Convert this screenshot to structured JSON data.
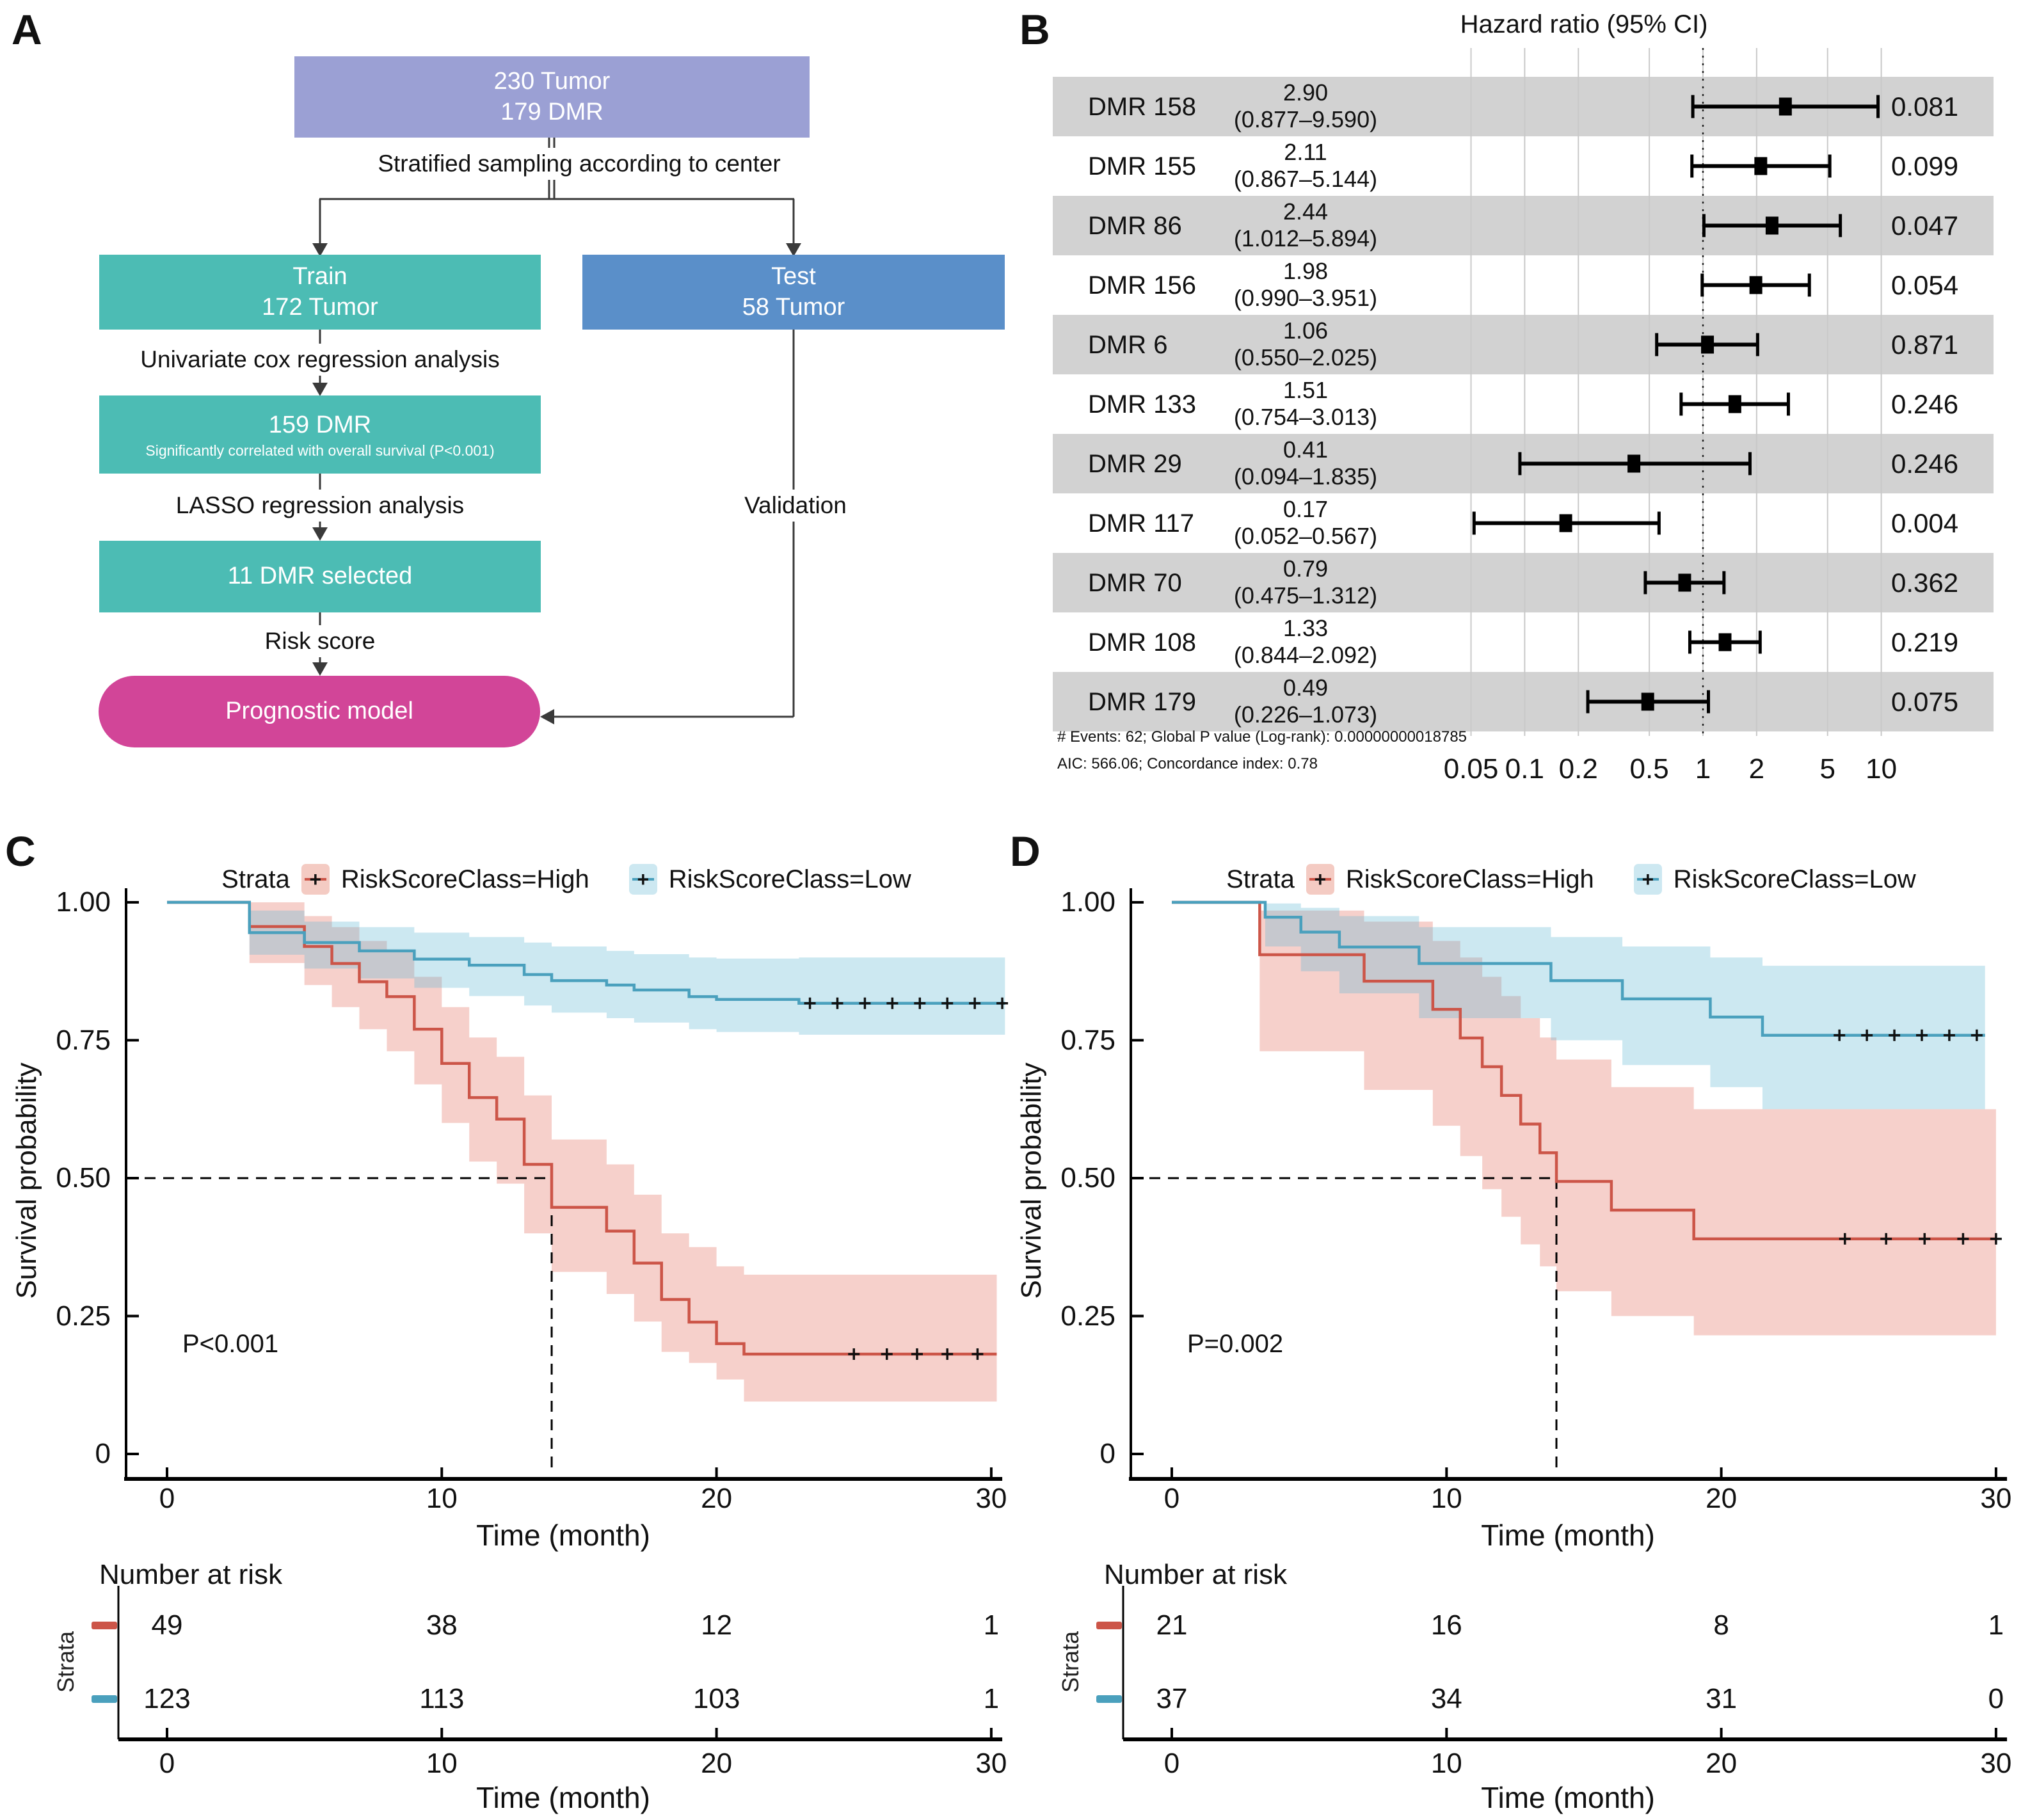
{
  "colors": {
    "flow_root": "#9ba0d4",
    "flow_train": "#4cbcb4",
    "flow_test": "#5a8fc9",
    "flow_model": "#d24598",
    "connector": "#3a3a3a",
    "forest_band": "#d2d2d2",
    "km_high": "#cc5548",
    "km_low": "#4aa0bd",
    "km_high_band": "rgba(228,108,92,0.32)",
    "km_low_band": "rgba(100,185,212,0.33)",
    "km_high_band_solid": "#f4cbc3",
    "km_low_band_solid": "#cde8f1"
  },
  "figure": {
    "panel_letters": {
      "a": "A",
      "b": "B",
      "c": "C",
      "d": "D"
    },
    "plus_glyph": "+",
    "flowchart": {
      "root": {
        "lines": [
          "230 Tumor",
          "179 DMR"
        ]
      },
      "train": {
        "lines": [
          "Train",
          "172 Tumor"
        ]
      },
      "test": {
        "lines": [
          "Test",
          "58 Tumor"
        ]
      },
      "dmr159": {
        "lines": [
          "159 DMR",
          "Significantly correlated with overall survival (P<0.001)"
        ]
      },
      "dmr11": {
        "lines": [
          "11 DMR selected"
        ]
      },
      "model": {
        "lines": [
          "Prognostic model"
        ]
      },
      "edge_labels": {
        "stratified": "Stratified sampling according to center",
        "univariate": "Univariate cox regression analysis",
        "lasso": "LASSO regression analysis",
        "risk_score": "Risk score",
        "validation": "Validation"
      }
    }
  },
  "chart_data": [
    {
      "id": "forest_plot",
      "type": "scatter",
      "variant": "forest-plot",
      "title": "Hazard ratio (95% CI)",
      "x_scale": "log10",
      "x_ticks": [
        0.05,
        0.1,
        0.2,
        0.5,
        1,
        2,
        5,
        10
      ],
      "ref_line": 1,
      "rows": [
        {
          "label": "DMR 158",
          "hr": 2.9,
          "lo": 0.877,
          "hi": 9.59,
          "hr_text": "2.90",
          "ci_text": "(0.877–9.590)",
          "p": "0.081"
        },
        {
          "label": "DMR 155",
          "hr": 2.11,
          "lo": 0.867,
          "hi": 5.144,
          "hr_text": "2.11",
          "ci_text": "(0.867–5.144)",
          "p": "0.099"
        },
        {
          "label": "DMR 86",
          "hr": 2.44,
          "lo": 1.012,
          "hi": 5.894,
          "hr_text": "2.44",
          "ci_text": "(1.012–5.894)",
          "p": "0.047"
        },
        {
          "label": "DMR 156",
          "hr": 1.98,
          "lo": 0.99,
          "hi": 3.951,
          "hr_text": "1.98",
          "ci_text": "(0.990–3.951)",
          "p": "0.054"
        },
        {
          "label": "DMR 6",
          "hr": 1.06,
          "lo": 0.55,
          "hi": 2.025,
          "hr_text": "1.06",
          "ci_text": "(0.550–2.025)",
          "p": "0.871"
        },
        {
          "label": "DMR 133",
          "hr": 1.51,
          "lo": 0.754,
          "hi": 3.013,
          "hr_text": "1.51",
          "ci_text": "(0.754–3.013)",
          "p": "0.246"
        },
        {
          "label": "DMR 29",
          "hr": 0.41,
          "lo": 0.094,
          "hi": 1.835,
          "hr_text": "0.41",
          "ci_text": "(0.094–1.835)",
          "p": "0.246"
        },
        {
          "label": "DMR 117",
          "hr": 0.17,
          "lo": 0.052,
          "hi": 0.567,
          "hr_text": "0.17",
          "ci_text": "(0.052–0.567)",
          "p": "0.004"
        },
        {
          "label": "DMR 70",
          "hr": 0.79,
          "lo": 0.475,
          "hi": 1.312,
          "hr_text": "0.79",
          "ci_text": "(0.475–1.312)",
          "p": "0.362"
        },
        {
          "label": "DMR 108",
          "hr": 1.33,
          "lo": 0.844,
          "hi": 2.092,
          "hr_text": "1.33",
          "ci_text": "(0.844–2.092)",
          "p": "0.219"
        },
        {
          "label": "DMR 179",
          "hr": 0.49,
          "lo": 0.226,
          "hi": 1.073,
          "hr_text": "0.49",
          "ci_text": "(0.226–1.073)",
          "p": "0.075"
        }
      ],
      "footnotes": [
        "# Events: 62; Global P value (Log-rank): 0.00000000018785",
        "AIC: 566.06; Concordance index: 0.78"
      ]
    },
    {
      "id": "km_train",
      "type": "line",
      "variant": "kaplan-meier",
      "legend_title": "Strata",
      "p_label": "P<0.001",
      "median_t": 14,
      "xlabel": "Time (month)",
      "ylabel": "Survival probability",
      "x_ticks": [
        0,
        10,
        20,
        30
      ],
      "y_ticks": [
        "1.00",
        "0.75",
        "0.50",
        "0.25",
        "0"
      ],
      "series": [
        {
          "name": "RiskScoreClass=High",
          "color": "#cc5548",
          "band_color": "rgba(228,108,92,0.32)",
          "steps": [
            [
              0,
              1
            ],
            [
              3,
              0.956
            ],
            [
              5,
              0.92
            ],
            [
              6,
              0.889
            ],
            [
              7,
              0.856
            ],
            [
              8,
              0.829
            ],
            [
              9,
              0.77
            ],
            [
              10,
              0.708
            ],
            [
              11,
              0.646
            ],
            [
              12,
              0.607
            ],
            [
              13,
              0.525
            ],
            [
              14,
              0.447
            ],
            [
              16,
              0.404
            ],
            [
              17,
              0.346
            ],
            [
              18,
              0.28
            ],
            [
              19,
              0.239
            ],
            [
              20,
              0.2
            ],
            [
              21,
              0.181
            ]
          ],
          "end_t": 30.2,
          "censor_p": 0.181,
          "censors": [
            25,
            26.2,
            27.3,
            28.4,
            29.5
          ],
          "band": [
            [
              3,
              0.89,
              1.0
            ],
            [
              5,
              0.85,
              0.975
            ],
            [
              6,
              0.81,
              0.955
            ],
            [
              7,
              0.77,
              0.93
            ],
            [
              8,
              0.73,
              0.91
            ],
            [
              9,
              0.67,
              0.865
            ],
            [
              10,
              0.6,
              0.81
            ],
            [
              11,
              0.53,
              0.755
            ],
            [
              12,
              0.49,
              0.72
            ],
            [
              13,
              0.4,
              0.65
            ],
            [
              14,
              0.33,
              0.57
            ],
            [
              16,
              0.29,
              0.525
            ],
            [
              17,
              0.24,
              0.47
            ],
            [
              18,
              0.185,
              0.4
            ],
            [
              19,
              0.165,
              0.375
            ],
            [
              20,
              0.135,
              0.34
            ],
            [
              21,
              0.095,
              0.325
            ]
          ]
        },
        {
          "name": "RiskScoreClass=Low",
          "color": "#4aa0bd",
          "band_color": "rgba(100,185,212,0.33)",
          "steps": [
            [
              0,
              1
            ],
            [
              3,
              0.945
            ],
            [
              5,
              0.927
            ],
            [
              7,
              0.912
            ],
            [
              9,
              0.897
            ],
            [
              11,
              0.886
            ],
            [
              13,
              0.869
            ],
            [
              14,
              0.858
            ],
            [
              16,
              0.85
            ],
            [
              17,
              0.841
            ],
            [
              19,
              0.829
            ],
            [
              20,
              0.824
            ],
            [
              23,
              0.817
            ]
          ],
          "end_t": 30.5,
          "censor_p": 0.817,
          "censors": [
            23.4,
            24.4,
            25.4,
            26.4,
            27.4,
            28.4,
            29.4,
            30.4
          ],
          "band": [
            [
              3,
              0.905,
              0.985
            ],
            [
              5,
              0.88,
              0.965
            ],
            [
              7,
              0.862,
              0.955
            ],
            [
              9,
              0.845,
              0.945
            ],
            [
              11,
              0.83,
              0.937
            ],
            [
              13,
              0.813,
              0.927
            ],
            [
              14,
              0.8,
              0.92
            ],
            [
              16,
              0.79,
              0.912
            ],
            [
              17,
              0.782,
              0.906
            ],
            [
              19,
              0.77,
              0.9
            ],
            [
              20,
              0.765,
              0.898
            ],
            [
              23,
              0.76,
              0.9
            ]
          ]
        }
      ],
      "risk_table": {
        "title": "Number at risk",
        "axis_label": "Strata",
        "xlabel": "Time (month)",
        "rows": [
          [
            "49",
            "38",
            "12",
            "1"
          ],
          [
            "123",
            "113",
            "103",
            "1"
          ]
        ]
      }
    },
    {
      "id": "km_test",
      "type": "line",
      "variant": "kaplan-meier",
      "legend_title": "Strata",
      "p_label": "P=0.002",
      "median_t": 14,
      "xlabel": "Time (month)",
      "ylabel": "Survival probability",
      "x_ticks": [
        0,
        10,
        20,
        30
      ],
      "y_ticks": [
        "1.00",
        "0.75",
        "0.50",
        "0.25",
        "0"
      ],
      "series": [
        {
          "name": "RiskScoreClass=High",
          "color": "#cc5548",
          "band_color": "rgba(228,108,92,0.32)",
          "steps": [
            [
              0,
              1
            ],
            [
              3.2,
              0.905
            ],
            [
              7,
              0.857
            ],
            [
              9.5,
              0.806
            ],
            [
              10.5,
              0.754
            ],
            [
              11.3,
              0.702
            ],
            [
              12,
              0.65
            ],
            [
              12.7,
              0.598
            ],
            [
              13.4,
              0.546
            ],
            [
              14,
              0.494
            ],
            [
              16,
              0.442
            ],
            [
              19,
              0.39
            ]
          ],
          "end_t": 30,
          "censor_p": 0.39,
          "censors": [
            24.5,
            26,
            27.4,
            28.8,
            30
          ],
          "band": [
            [
              3.2,
              0.73,
              0.985
            ],
            [
              7,
              0.66,
              0.965
            ],
            [
              9.5,
              0.595,
              0.93
            ],
            [
              10.5,
              0.54,
              0.9
            ],
            [
              11.3,
              0.48,
              0.865
            ],
            [
              12,
              0.43,
              0.83
            ],
            [
              12.7,
              0.38,
              0.79
            ],
            [
              13.4,
              0.34,
              0.755
            ],
            [
              14,
              0.295,
              0.715
            ],
            [
              16,
              0.25,
              0.665
            ],
            [
              19,
              0.215,
              0.625
            ]
          ]
        },
        {
          "name": "RiskScoreClass=Low",
          "color": "#4aa0bd",
          "band_color": "rgba(100,185,212,0.33)",
          "steps": [
            [
              0,
              1
            ],
            [
              3.4,
              0.973
            ],
            [
              4.7,
              0.946
            ],
            [
              6.1,
              0.919
            ],
            [
              9,
              0.889
            ],
            [
              13.8,
              0.858
            ],
            [
              16.4,
              0.825
            ],
            [
              19.6,
              0.792
            ],
            [
              21.5,
              0.759
            ]
          ],
          "end_t": 29.6,
          "censor_p": 0.759,
          "censors": [
            24.3,
            25.3,
            26.3,
            27.3,
            28.3,
            29.3
          ],
          "band": [
            [
              3.4,
              0.92,
              0.998
            ],
            [
              4.7,
              0.875,
              0.99
            ],
            [
              6.1,
              0.835,
              0.975
            ],
            [
              9,
              0.79,
              0.955
            ],
            [
              13.8,
              0.75,
              0.937
            ],
            [
              16.4,
              0.705,
              0.92
            ],
            [
              19.6,
              0.665,
              0.9
            ],
            [
              21.5,
              0.625,
              0.885
            ]
          ]
        }
      ],
      "risk_table": {
        "title": "Number at risk",
        "axis_label": "Strata",
        "xlabel": "Time (month)",
        "rows": [
          [
            "21",
            "16",
            "8",
            "1"
          ],
          [
            "37",
            "34",
            "31",
            "0"
          ]
        ]
      }
    }
  ]
}
